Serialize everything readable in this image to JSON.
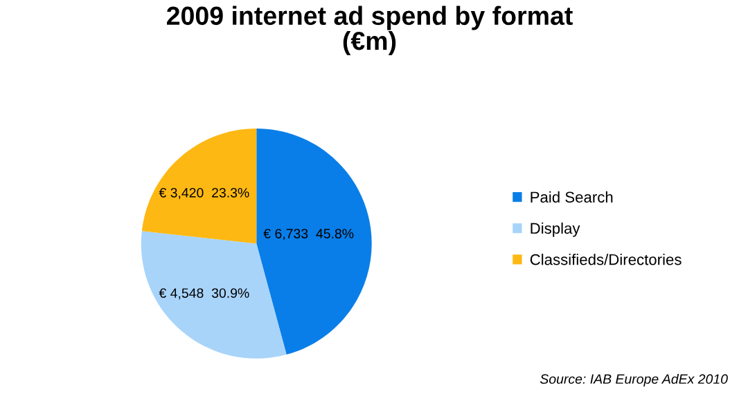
{
  "chart_data": {
    "type": "pie",
    "title": "2009 internet ad spend by format\n(€m)",
    "categories": [
      "Paid Search",
      "Display",
      "Classifieds/Directories"
    ],
    "values": [
      6733,
      4548,
      3420
    ],
    "value_labels": [
      "€ 6,733  45.8%",
      "€ 4,548  30.9%",
      "€ 3,420  23.3%"
    ],
    "colors": [
      "#0a7ee8",
      "#a8d4fa",
      "#fdb813"
    ],
    "legend": "right",
    "annotations": [
      "Source: IAB Europe AdEx 2010"
    ]
  }
}
